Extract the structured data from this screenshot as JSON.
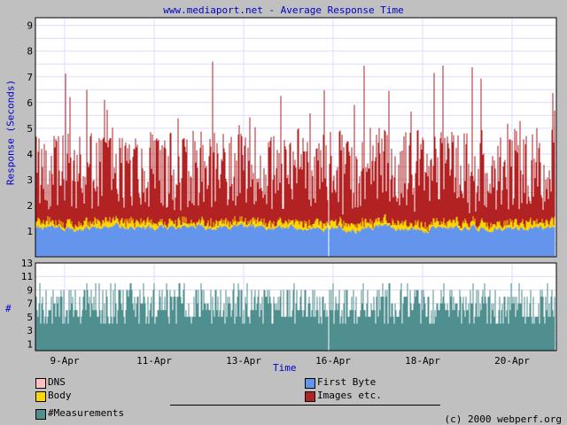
{
  "chart_data": [
    {
      "type": "area",
      "stacked": true,
      "title": "www.mediaport.net - Average Response Time",
      "ylabel": "Response (Seconds)",
      "xlabel": "Time",
      "ylim": [
        0,
        9.3
      ],
      "yticks": [
        1,
        2,
        3,
        4,
        5,
        6,
        7,
        8,
        9
      ],
      "x_tick_labels": [
        "9-Apr",
        "11-Apr",
        "13-Apr",
        "16-Apr",
        "18-Apr",
        "20-Apr"
      ],
      "grid": true,
      "series": [
        {
          "name": "DNS",
          "color": "#ffc0c0",
          "typical_value": 0.02
        },
        {
          "name": "First Byte",
          "color": "#6495ed",
          "typical_value": 1.1
        },
        {
          "name": "Body",
          "color": "#ffd700",
          "typical_value": 0.2
        },
        {
          "name": "Images etc.",
          "color": "#b22222",
          "typical_value": 1.7
        }
      ],
      "peak_total": 9.3
    },
    {
      "type": "bar",
      "ylabel": "#",
      "ylim": [
        0,
        13
      ],
      "yticks": [
        1,
        3,
        5,
        7,
        9,
        11,
        13
      ],
      "series": [
        {
          "name": "#Measurements",
          "color": "#4f8f8f",
          "typical_value": 6
        }
      ]
    }
  ],
  "legend": {
    "dns": "DNS",
    "body": "Body",
    "measurements": "#Measurements",
    "first_byte": "First Byte",
    "images": "Images etc."
  },
  "colors": {
    "dns": "#ffc0c0",
    "body": "#ffd700",
    "measurements": "#4f8f8f",
    "first_byte": "#6495ed",
    "images": "#b22222"
  },
  "footer": {
    "copyright": "(c) 2000 webperf.org"
  }
}
